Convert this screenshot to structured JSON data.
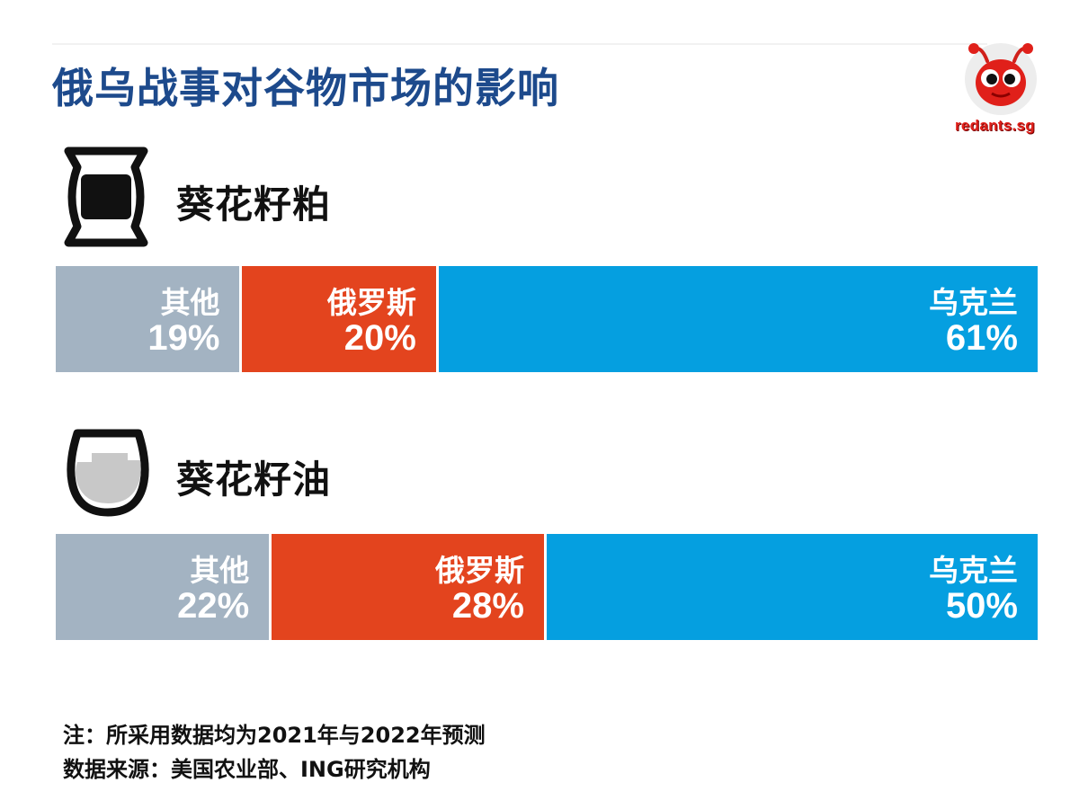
{
  "title": "俄乌战事对谷物市场的影响",
  "logo_text": "redants.sg",
  "colors": {
    "other": "#a3b3c2",
    "russia": "#e3441e",
    "ukraine": "#059fe0",
    "title": "#1d4a8c"
  },
  "chart_data": [
    {
      "type": "bar",
      "orientation": "horizontal-stacked-100",
      "title": "葵花籽粕",
      "icon": "sack-icon",
      "categories": [
        "其他",
        "俄罗斯",
        "乌克兰"
      ],
      "values": [
        19,
        20,
        61
      ],
      "labels": [
        "19%",
        "20%",
        "61%"
      ]
    },
    {
      "type": "bar",
      "orientation": "horizontal-stacked-100",
      "title": "葵花籽油",
      "icon": "oil-bowl-icon",
      "categories": [
        "其他",
        "俄罗斯",
        "乌克兰"
      ],
      "values": [
        22,
        28,
        50
      ],
      "labels": [
        "22%",
        "28%",
        "50%"
      ]
    }
  ],
  "notes": {
    "line1": "注：所采用数据均为2021年与2022年预测",
    "line2": "数据来源：美国农业部、ING研究机构"
  }
}
